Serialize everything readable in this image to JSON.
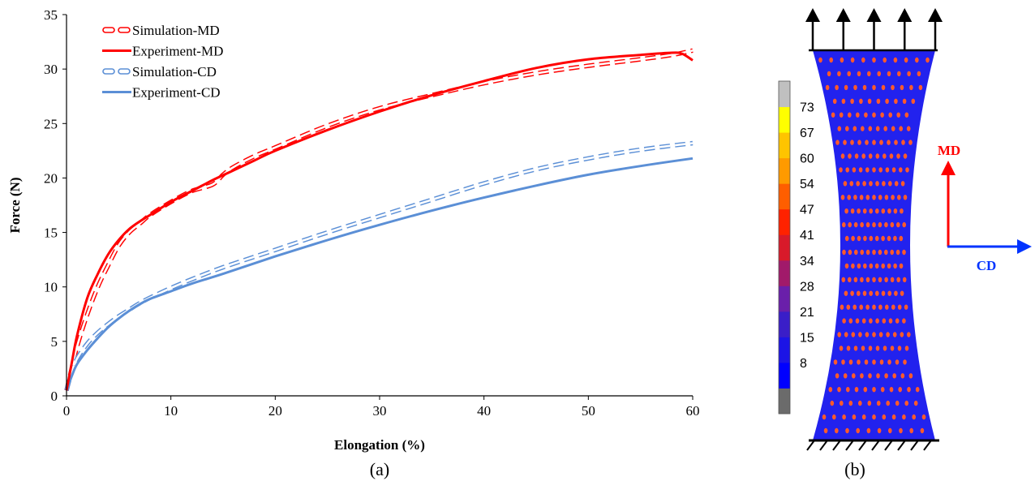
{
  "chart_data": [
    {
      "type": "line",
      "panel_label": "(a)",
      "title": "",
      "xlabel": "Elongation (%)",
      "ylabel": "Force (N)",
      "xlim": [
        0,
        60
      ],
      "ylim": [
        0,
        35
      ],
      "xticks": [
        "0",
        "10",
        "20",
        "30",
        "40",
        "50",
        "60"
      ],
      "yticks": [
        "0",
        "5",
        "10",
        "15",
        "20",
        "25",
        "30",
        "35"
      ],
      "grid": false,
      "legend_position": "top-left",
      "series": [
        {
          "name": "Simulation-MD",
          "color": "#ff0000",
          "style": "dashed-double",
          "x": [
            0,
            0.5,
            1,
            2,
            3,
            4,
            5,
            6,
            7,
            8,
            10,
            12,
            14,
            15,
            16,
            18,
            20,
            25,
            30,
            35,
            40,
            45,
            50,
            55,
            58,
            60
          ],
          "y": [
            0.5,
            2.5,
            4.5,
            7.5,
            10,
            12,
            13.8,
            15,
            15.8,
            16.6,
            17.8,
            18.8,
            19.4,
            20.3,
            21,
            22,
            22.8,
            24.8,
            26.4,
            27.6,
            28.7,
            29.6,
            30.3,
            30.9,
            31.3,
            31.7
          ]
        },
        {
          "name": "Experiment-MD",
          "color": "#ff0000",
          "style": "solid",
          "x": [
            0,
            0.5,
            1,
            2,
            3,
            4,
            5,
            6,
            7,
            8,
            10,
            12,
            14,
            16,
            18,
            20,
            25,
            30,
            35,
            40,
            45,
            50,
            55,
            58,
            59,
            60
          ],
          "y": [
            0.5,
            3,
            5.5,
            9,
            11.2,
            13,
            14.3,
            15.3,
            16,
            16.6,
            17.8,
            18.8,
            19.8,
            20.7,
            21.6,
            22.5,
            24.4,
            26.1,
            27.6,
            28.9,
            30.1,
            30.9,
            31.3,
            31.5,
            31.4,
            30.8
          ]
        },
        {
          "name": "Simulation-CD",
          "color": "#5b8fd6",
          "style": "dashed-double",
          "x": [
            0,
            0.5,
            1,
            2,
            3,
            4,
            5,
            6,
            7,
            8,
            10,
            12,
            15,
            20,
            25,
            30,
            35,
            40,
            45,
            50,
            55,
            60
          ],
          "y": [
            0.5,
            2.2,
            3.4,
            4.8,
            5.8,
            6.6,
            7.3,
            7.9,
            8.5,
            9,
            9.9,
            10.7,
            11.8,
            13.4,
            15,
            16.5,
            18,
            19.5,
            20.8,
            21.8,
            22.6,
            23.2
          ]
        },
        {
          "name": "Experiment-CD",
          "color": "#5b8fd6",
          "style": "solid",
          "x": [
            0,
            0.5,
            1,
            2,
            3,
            4,
            5,
            6,
            7,
            8,
            10,
            12,
            15,
            20,
            25,
            30,
            35,
            40,
            45,
            50,
            55,
            60
          ],
          "y": [
            0.5,
            1.8,
            2.9,
            4.2,
            5.3,
            6.3,
            7.1,
            7.8,
            8.4,
            8.9,
            9.6,
            10.3,
            11.2,
            12.8,
            14.3,
            15.7,
            17,
            18.2,
            19.3,
            20.3,
            21.1,
            21.8
          ]
        }
      ]
    },
    {
      "type": "heatmap",
      "panel_label": "(b)",
      "colorbar": {
        "labels": [
          "73",
          "67",
          "60",
          "54",
          "47",
          "41",
          "34",
          "28",
          "21",
          "15",
          "8"
        ],
        "colors": [
          "#6b6b6b",
          "#0000ff",
          "#1c14e6",
          "#3a1ec8",
          "#6a1faa",
          "#a11a6a",
          "#d81a2a",
          "#ff2200",
          "#ff5e00",
          "#ff9a00",
          "#ffc400",
          "#ffff00",
          "#c0c0c0"
        ]
      },
      "directions": {
        "machine": {
          "label": "MD",
          "color": "#ff0000"
        },
        "cross": {
          "label": "CD",
          "color": "#0033ff"
        }
      },
      "specimen": {
        "fill": "#2222ee",
        "dot_color": "#ff5a2a",
        "dot_rows": 28,
        "dots_per_row": 11
      },
      "top_arrow_count": 5,
      "bottom_hatch_count": 10
    }
  ]
}
